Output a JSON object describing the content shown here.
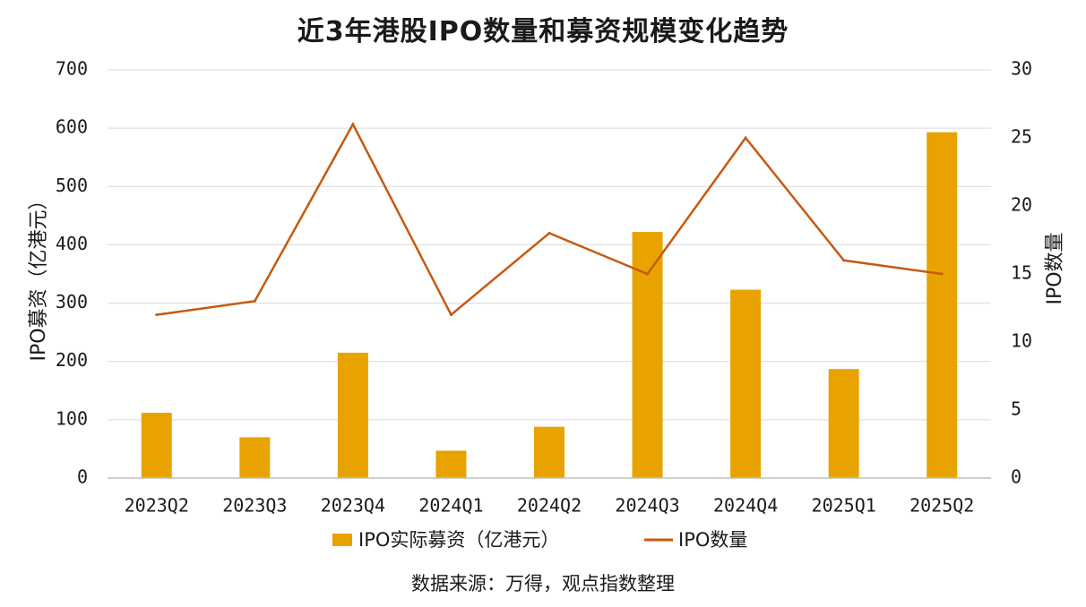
{
  "chart_data": {
    "type": "bar+line",
    "title": "近3年港股IPO数量和募资规模变化趋势",
    "categories": [
      "2023Q2",
      "2023Q3",
      "2023Q4",
      "2024Q1",
      "2024Q2",
      "2024Q3",
      "2024Q4",
      "2025Q1",
      "2025Q2"
    ],
    "series": [
      {
        "name": "IPO实际募资（亿港元）",
        "type": "bar",
        "axis": "left",
        "color": "#E8A300",
        "values": [
          112,
          70,
          215,
          47,
          88,
          422,
          323,
          187,
          593
        ]
      },
      {
        "name": "IPO数量",
        "type": "line",
        "axis": "right",
        "color": "#C55A11",
        "values": [
          12,
          13,
          26,
          12,
          18,
          15,
          25,
          16,
          15
        ]
      }
    ],
    "ylabel": "IPO募资（亿港元）",
    "y2label": "IPO数量",
    "ylim": [
      0,
      700
    ],
    "y2lim": [
      0,
      30
    ],
    "yticks": [
      "0",
      "100",
      "200",
      "300",
      "400",
      "500",
      "600",
      "700"
    ],
    "y2ticks": [
      "0",
      "5",
      "10",
      "15",
      "20",
      "25",
      "30"
    ],
    "grid": true,
    "legend_position": "bottom"
  },
  "source_text": "数据来源：万得，观点指数整理"
}
